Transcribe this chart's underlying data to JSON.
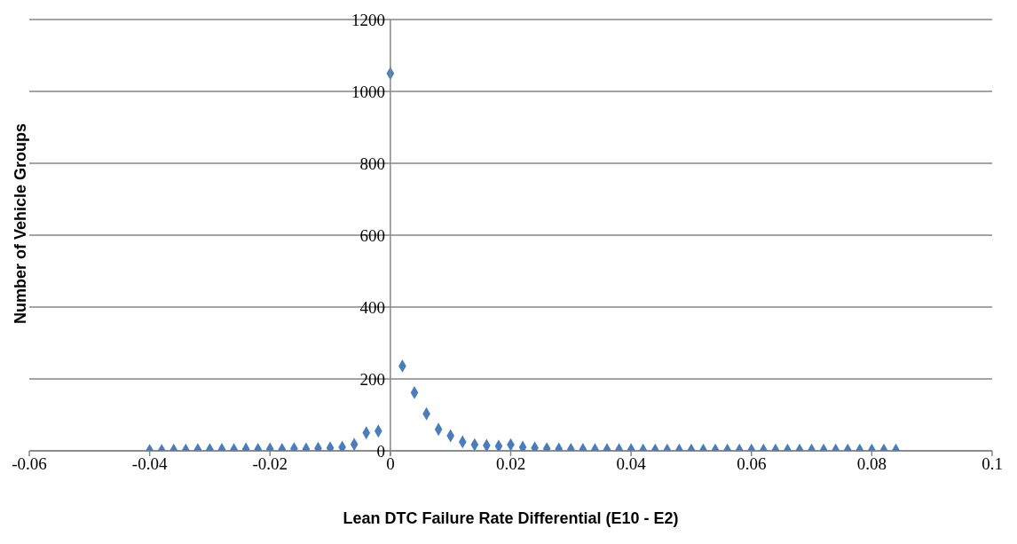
{
  "chart_data": {
    "type": "scatter",
    "xlabel": "Lean DTC Failure Rate Differential (E10 - E2)",
    "ylabel": "Number of Vehicle Groups",
    "x": [
      -0.04,
      -0.038,
      -0.036,
      -0.034,
      -0.032,
      -0.03,
      -0.028,
      -0.026,
      -0.024,
      -0.022,
      -0.02,
      -0.018,
      -0.016,
      -0.014,
      -0.012,
      -0.01,
      -0.008,
      -0.006,
      -0.004,
      -0.002,
      0,
      0.002,
      0.004,
      0.006,
      0.008,
      0.01,
      0.012,
      0.014,
      0.016,
      0.018,
      0.02,
      0.022,
      0.024,
      0.026,
      0.028,
      0.03,
      0.032,
      0.034,
      0.036,
      0.038,
      0.04,
      0.042,
      0.044,
      0.046,
      0.048,
      0.05,
      0.052,
      0.054,
      0.056,
      0.058,
      0.06,
      0.062,
      0.064,
      0.066,
      0.068,
      0.07,
      0.072,
      0.074,
      0.076,
      0.078,
      0.08,
      0.082,
      0.084
    ],
    "values": [
      1,
      1,
      2,
      2,
      3,
      3,
      4,
      3,
      5,
      4,
      5,
      4,
      6,
      5,
      7,
      8,
      10,
      18,
      50,
      55,
      1050,
      236,
      162,
      103,
      60,
      42,
      25,
      17,
      15,
      13,
      17,
      10,
      8,
      6,
      5,
      4,
      4,
      3,
      3,
      3,
      3,
      2,
      2,
      2,
      2,
      2,
      2,
      2,
      2,
      2,
      2,
      2,
      2,
      2,
      2,
      2,
      2,
      2,
      2,
      2,
      2,
      2,
      2
    ],
    "color": "#4a7ebb",
    "marker": "diamond",
    "xlim": [
      -0.06,
      0.1
    ],
    "xticks": [
      -0.06,
      -0.04,
      -0.02,
      0,
      0.02,
      0.04,
      0.06,
      0.08,
      0.1
    ],
    "ylim": [
      0,
      1200
    ],
    "yticks": [
      0,
      200,
      400,
      600,
      800,
      1000,
      1200
    ],
    "grid": "y"
  }
}
